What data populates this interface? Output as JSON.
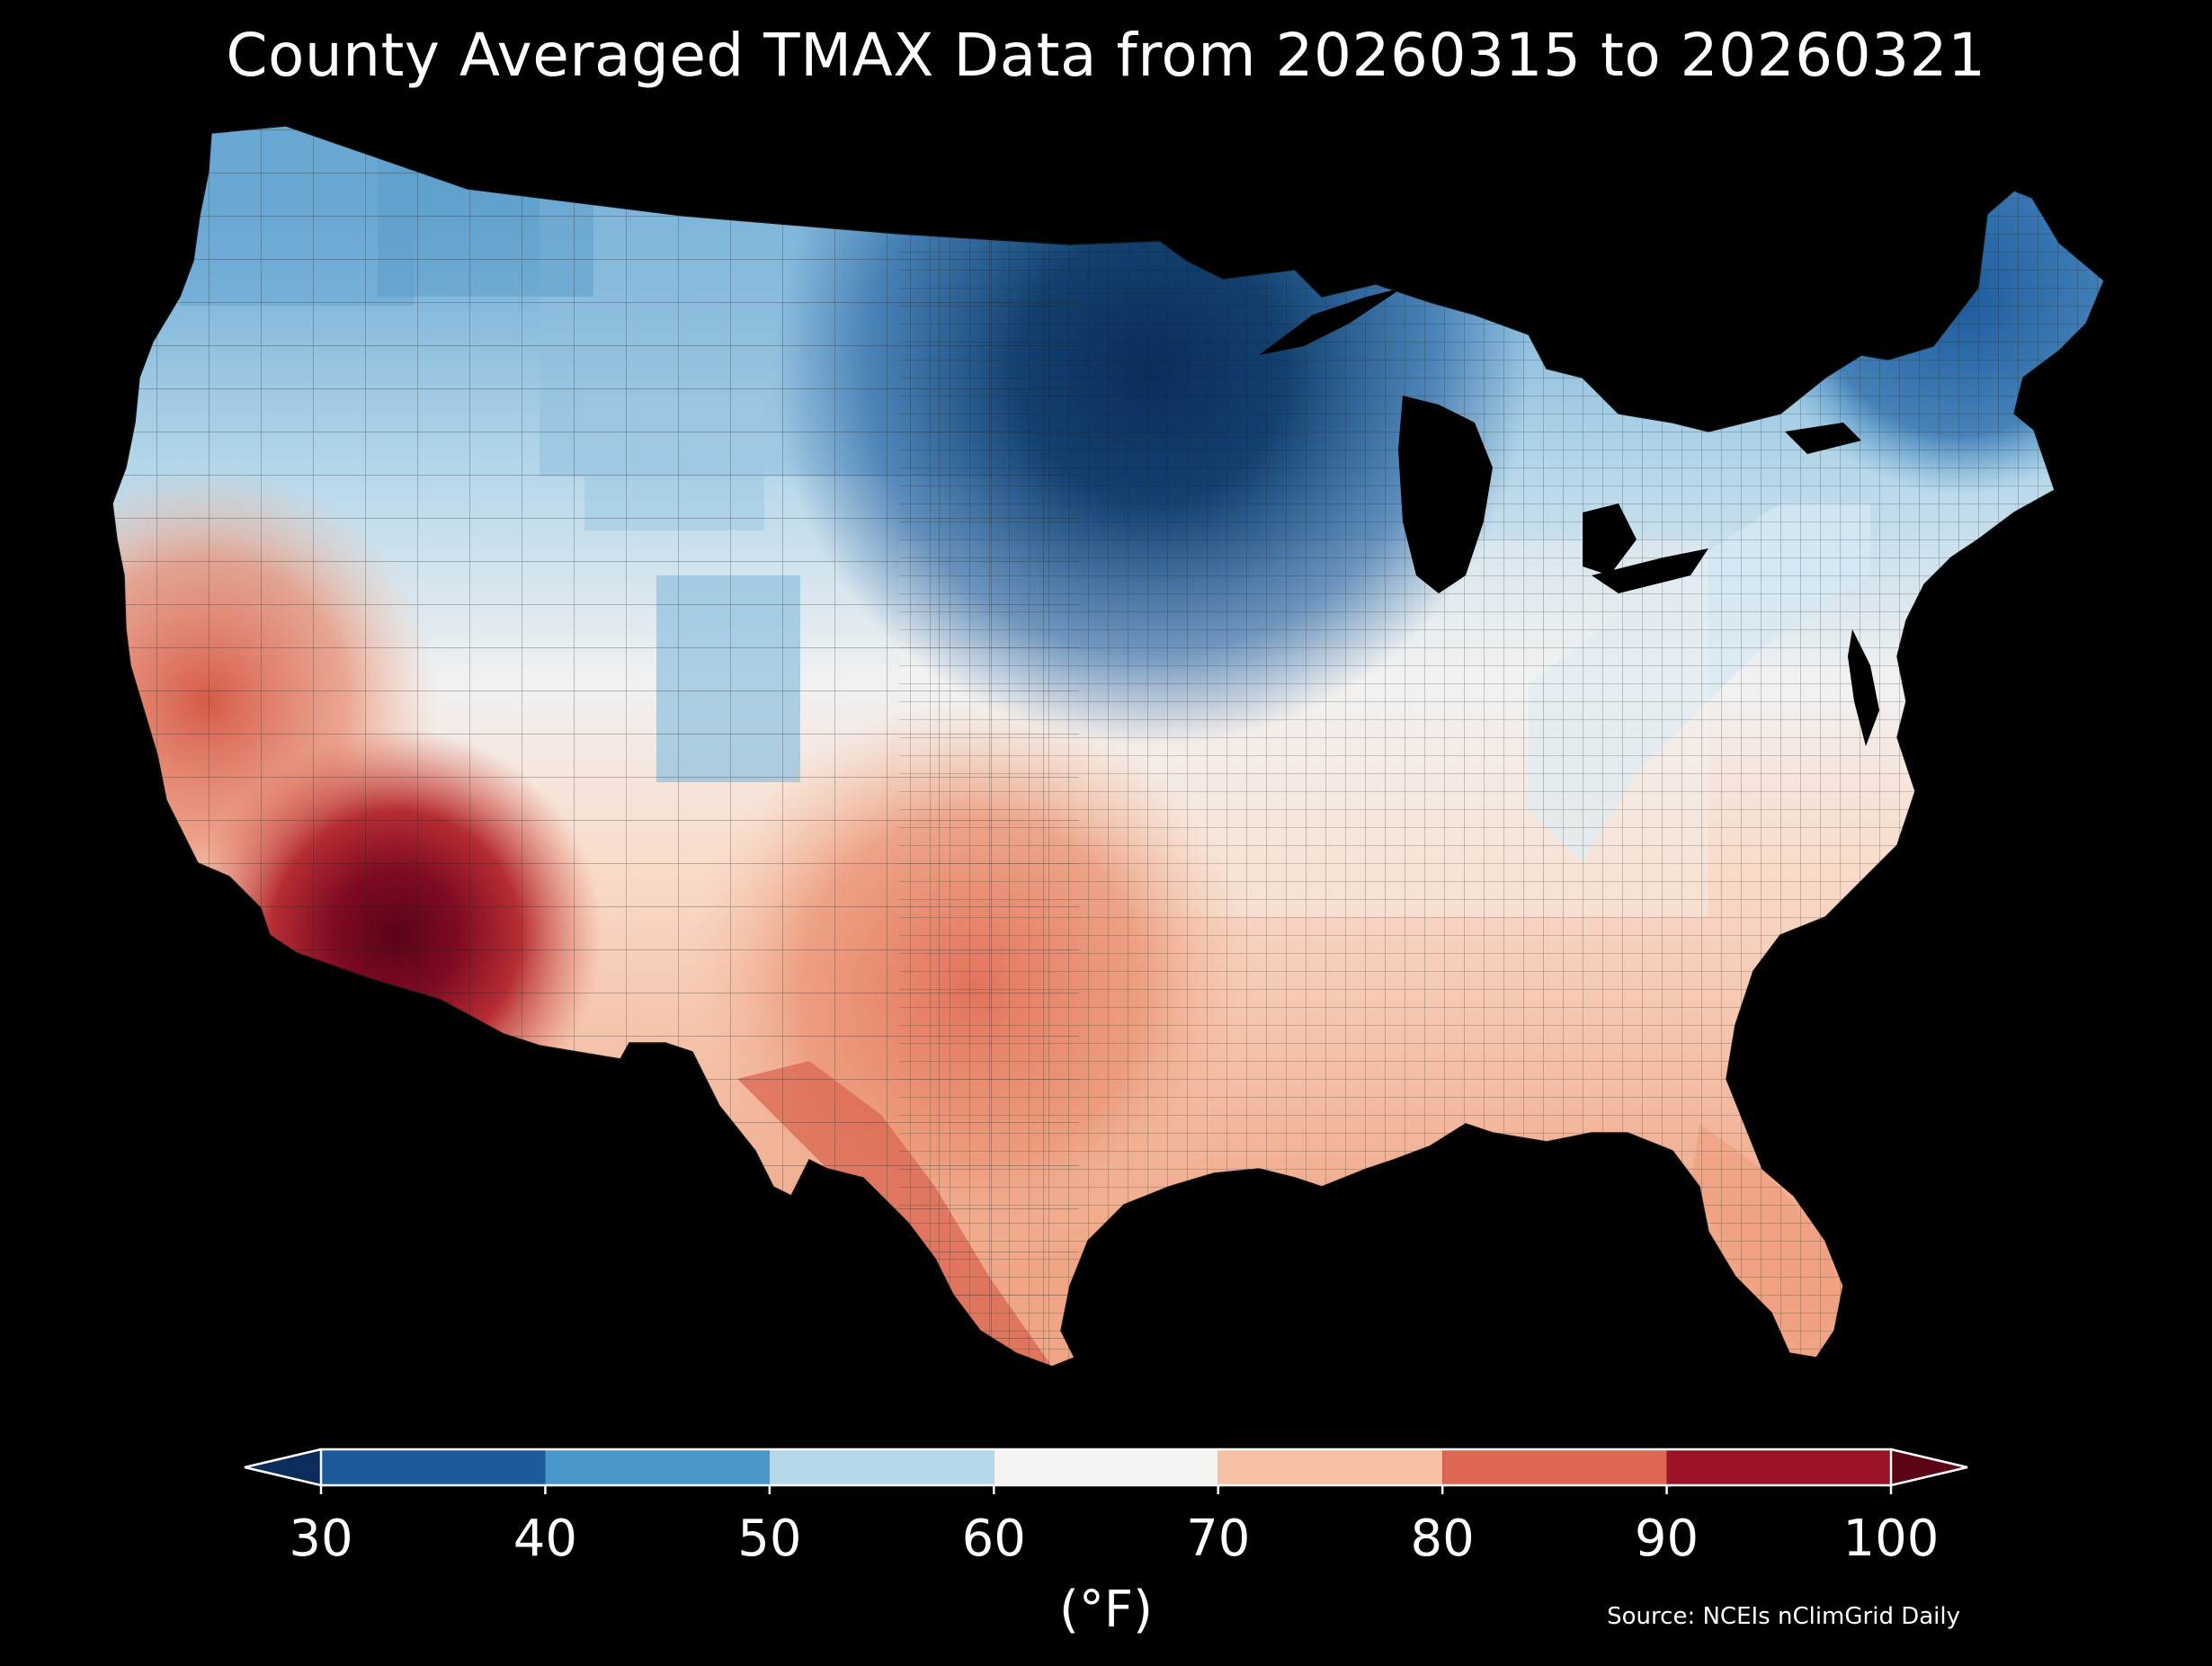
{
  "title": "County Averaged TMAX Data from 20260315 to 20260321",
  "colorbar": {
    "label": "(°F)",
    "ticks": [
      "30",
      "40",
      "50",
      "60",
      "70",
      "80",
      "90",
      "100"
    ],
    "bins": [
      {
        "range": [
          20,
          30
        ],
        "color": "#0b2d5b"
      },
      {
        "range": [
          30,
          40
        ],
        "color": "#1c5a9c"
      },
      {
        "range": [
          40,
          50
        ],
        "color": "#4a96c8"
      },
      {
        "range": [
          50,
          60
        ],
        "color": "#b5d7ea"
      },
      {
        "range": [
          60,
          70
        ],
        "color": "#f5f3f2"
      },
      {
        "range": [
          70,
          80
        ],
        "color": "#f6c0a2"
      },
      {
        "range": [
          80,
          90
        ],
        "color": "#db6652"
      },
      {
        "range": [
          90,
          100
        ],
        "color": "#9c1227"
      },
      {
        "range": [
          100,
          110
        ],
        "color": "#5a0416"
      }
    ]
  },
  "source": "Source: NCEIs nClimGrid Daily",
  "map": {
    "region": "Contiguous United States counties",
    "variable": "TMAX",
    "regional_values_F": [
      {
        "region": "upper-midwest-great-lakes",
        "value": 32
      },
      {
        "region": "northern-plains",
        "value": 44
      },
      {
        "region": "new-england",
        "value": 40
      },
      {
        "region": "northern-rockies",
        "value": 50
      },
      {
        "region": "pacific-northwest",
        "value": 55
      },
      {
        "region": "mid-atlantic-ohio-valley",
        "value": 58
      },
      {
        "region": "central-plains",
        "value": 62
      },
      {
        "region": "great-basin",
        "value": 68
      },
      {
        "region": "southeast",
        "value": 70
      },
      {
        "region": "southern-plains",
        "value": 76
      },
      {
        "region": "florida",
        "value": 76
      },
      {
        "region": "california-coast",
        "value": 80
      },
      {
        "region": "south-texas",
        "value": 84
      },
      {
        "region": "desert-southwest",
        "value": 92
      },
      {
        "region": "low-desert-arizona",
        "value": 96
      }
    ]
  }
}
